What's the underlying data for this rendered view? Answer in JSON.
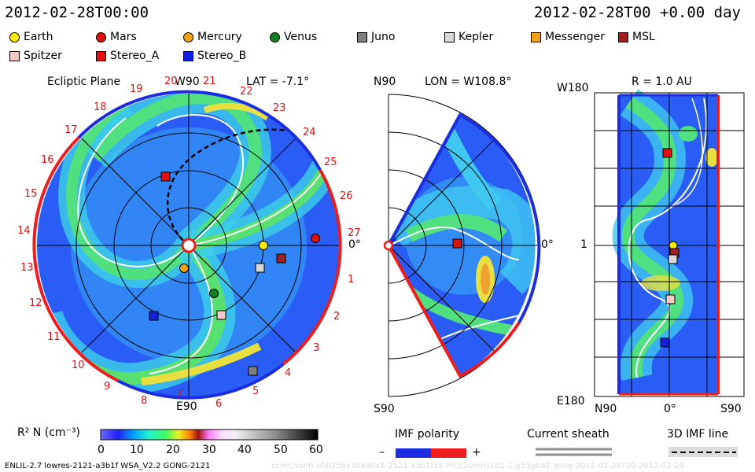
{
  "header": {
    "date_left": "2012-02-28T00:00",
    "date_right": "2012-02-28T00 +0.00 day"
  },
  "legend": [
    {
      "label": "Earth",
      "shape": "circle",
      "color": "#ffee00"
    },
    {
      "label": "Mars",
      "shape": "circle",
      "color": "#e01010"
    },
    {
      "label": "Mercury",
      "shape": "circle",
      "color": "#f0a010"
    },
    {
      "label": "Venus",
      "shape": "circle",
      "color": "#108020"
    },
    {
      "label": "Juno",
      "shape": "square",
      "color": "#808080"
    },
    {
      "label": "Kepler",
      "shape": "square",
      "color": "#d8d8d8"
    },
    {
      "label": "Messenger",
      "shape": "square",
      "color": "#f0a010"
    },
    {
      "label": "MSL",
      "shape": "square",
      "color": "#a02020"
    },
    {
      "label": "Spitzer",
      "shape": "square",
      "color": "#f8c8c8"
    },
    {
      "label": "Stereo_A",
      "shape": "square",
      "color": "#e01010"
    },
    {
      "label": "Stereo_B",
      "shape": "square",
      "color": "#1020e0"
    }
  ],
  "panel1": {
    "title": "Ecliptic Plane",
    "w90": "W90",
    "lat": "LAT = -7.1°",
    "e90": "E90",
    "zero": "0°",
    "rot_numbers": [
      "19",
      "20",
      "21",
      "22",
      "23",
      "24",
      "25",
      "26",
      "27",
      "1",
      "2",
      "3",
      "4",
      "5",
      "6",
      "7",
      "8",
      "9",
      "10",
      "11",
      "12",
      "13",
      "14",
      "15",
      "16",
      "17",
      "18"
    ]
  },
  "panel2": {
    "n90": "N90",
    "lon": "LON = W108.8°",
    "s90": "S90",
    "zero": "0°"
  },
  "panel3": {
    "title": "R = 1.0 AU",
    "w180": "W180",
    "e180": "E180",
    "one": "1",
    "n90": "N90",
    "zero": "0°",
    "s90": "S90"
  },
  "colorbar": {
    "label": "R² N (cm⁻³)",
    "ticks": [
      "0",
      "10",
      "20",
      "30",
      "40",
      "50",
      "60"
    ]
  },
  "keys": {
    "imf_polarity": "IMF polarity",
    "minus": "–",
    "plus": "+",
    "current_sheath": "Current sheath",
    "imf_line": "3D IMF line"
  },
  "footer": {
    "left": "ENLIL-2.7 lowres-2121-a3b1f WSA_V2.2 GONG-2121",
    "right": "ccmc/vsnh-old/256x30x90x1-2121-a3b1f15-mcp1umn1cd1-1.g53g6d2 gong-2012-02-28T00 2012-02-29"
  },
  "colors": {
    "blue": "#1a2ee0",
    "red": "#ee1c1c",
    "bg_blue": "#2a5df5",
    "cyan": "#40c8f0",
    "green": "#40e080",
    "yellow": "#e8e040"
  }
}
